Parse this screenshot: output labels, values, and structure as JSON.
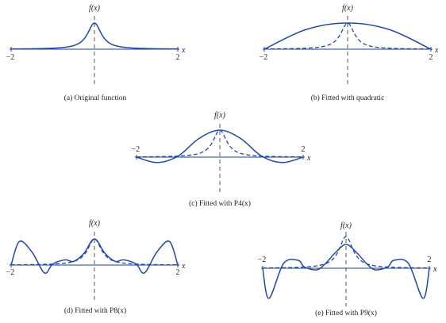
{
  "figure": {
    "x_tick_left": "−2",
    "x_tick_right": "2",
    "x_axis_label": "x",
    "y_axis_label": "f(x)"
  },
  "chart_data": [
    {
      "type": "line",
      "caption": "(a) Original function",
      "xlim": [
        -2,
        2
      ],
      "ylim": [
        -0.4,
        1.3
      ],
      "series": [
        {
          "style": "solid",
          "function": "1/(1+25x^2)"
        }
      ]
    },
    {
      "type": "line",
      "caption": "(b) Fitted with quadratic",
      "xlim": [
        -2,
        2
      ],
      "ylim": [
        -0.4,
        1.3
      ],
      "series": [
        {
          "style": "dashed",
          "function": "1/(1+25x^2)"
        },
        {
          "style": "solid",
          "x": [
            -2,
            -1,
            0,
            1,
            2
          ],
          "y": [
            0.0,
            0.75,
            1.0,
            0.75,
            0.0
          ]
        }
      ]
    },
    {
      "type": "line",
      "caption": "(c) Fitted with P4(x)",
      "xlim": [
        -2,
        2
      ],
      "ylim": [
        -0.4,
        1.3
      ],
      "series": [
        {
          "style": "dashed",
          "function": "1/(1+25x^2)"
        },
        {
          "style": "solid",
          "x": [
            -2,
            -1.5,
            -1,
            -0.5,
            0,
            0.5,
            1,
            1.5,
            2
          ],
          "y": [
            0.0,
            -0.2,
            0.04,
            0.69,
            1.0,
            0.69,
            0.04,
            -0.2,
            0.0
          ]
        }
      ]
    },
    {
      "type": "line",
      "caption": "(d) Fitted with P8(x)",
      "xlim": [
        -2,
        2
      ],
      "ylim": [
        -0.4,
        1.3
      ],
      "series": [
        {
          "style": "dashed",
          "function": "1/(1+25x^2)"
        },
        {
          "style": "solid",
          "x": [
            -2,
            -1.8,
            -1.5,
            -1.2,
            -1,
            -0.7,
            -0.5,
            -0.25,
            0,
            0.25,
            0.5,
            0.7,
            1,
            1.2,
            1.5,
            1.8,
            2
          ],
          "y": [
            0.0,
            0.9,
            0.5,
            -0.3,
            0.04,
            0.2,
            0.14,
            0.45,
            1.0,
            0.45,
            0.14,
            0.2,
            0.04,
            -0.3,
            0.5,
            0.9,
            0.0
          ]
        }
      ]
    },
    {
      "type": "line",
      "caption": "(e) Fitted with P9(x)",
      "xlim": [
        -2,
        2
      ],
      "ylim": [
        -1.1,
        1.1
      ],
      "series": [
        {
          "style": "dashed",
          "function": "1/(1+25x^2)"
        },
        {
          "style": "solid",
          "x": [
            -2,
            -1.85,
            -1.5,
            -1.15,
            -1,
            -0.7,
            -0.5,
            -0.25,
            0,
            0.25,
            0.5,
            0.7,
            1,
            1.15,
            1.5,
            1.85,
            2
          ],
          "y": [
            0.0,
            -0.95,
            0.15,
            0.25,
            0.04,
            -0.05,
            0.14,
            0.5,
            0.75,
            0.5,
            0.14,
            -0.05,
            0.04,
            0.25,
            0.15,
            -0.95,
            0.0
          ]
        }
      ]
    }
  ]
}
